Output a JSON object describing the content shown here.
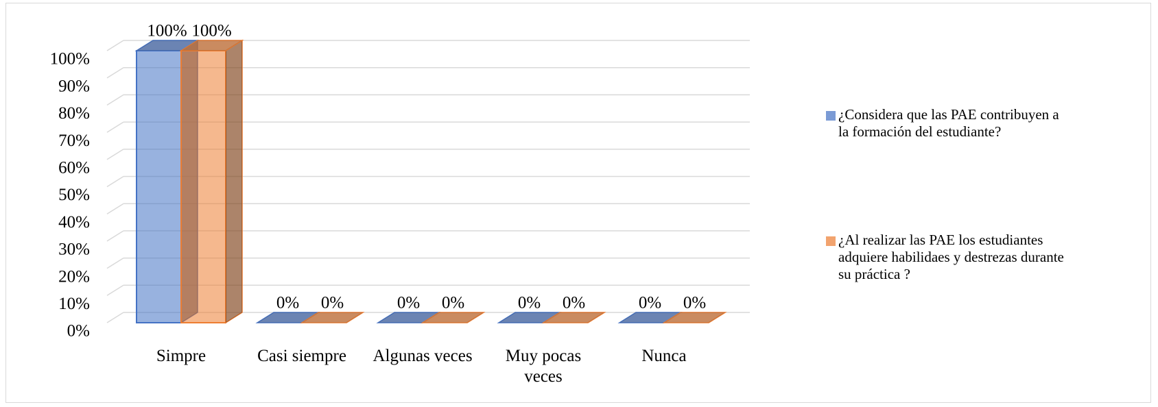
{
  "chart_data": {
    "type": "bar3d",
    "categories": [
      "Simpre",
      "Casi siempre",
      "Algunas veces",
      "Muy pocas veces",
      "Nunca"
    ],
    "series": [
      {
        "name": "¿Considera que las PAE contribuyen a la formación del estudiante?",
        "color": "#4472c4",
        "values": [
          100,
          0,
          0,
          0,
          0
        ],
        "value_labels": [
          "100%",
          "0%",
          "0%",
          "0%",
          "0%"
        ]
      },
      {
        "name": "¿Al realizar las PAE los estudiantes adquiere habilidaes y destrezas durante su práctica ?",
        "color": "#ed7d31",
        "values": [
          100,
          0,
          0,
          0,
          0
        ],
        "value_labels": [
          "100%",
          "0%",
          "0%",
          "0%",
          "0%"
        ]
      }
    ],
    "ylim": [
      0,
      100
    ],
    "yticks": [
      {
        "value": 0,
        "label": "0%"
      },
      {
        "value": 10,
        "label": "10%"
      },
      {
        "value": 20,
        "label": "20%"
      },
      {
        "value": 30,
        "label": "30%"
      },
      {
        "value": 40,
        "label": "40%"
      },
      {
        "value": 50,
        "label": "50%"
      },
      {
        "value": 60,
        "label": "60%"
      },
      {
        "value": 70,
        "label": "70%"
      },
      {
        "value": 80,
        "label": "80%"
      },
      {
        "value": 90,
        "label": "90%"
      },
      {
        "value": 100,
        "label": "100%"
      }
    ],
    "grid": true,
    "legend": "right"
  }
}
